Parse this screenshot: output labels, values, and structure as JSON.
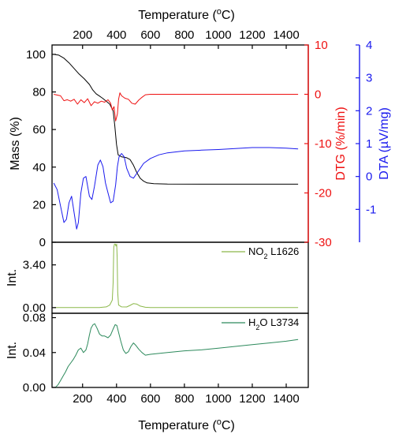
{
  "chart_data": {
    "type": "line",
    "x": {
      "label_main": "Temperature (",
      "label_sup": "o",
      "label_end": "C)",
      "range": [
        20,
        1530
      ],
      "ticks": [
        200,
        400,
        600,
        800,
        1000,
        1200,
        1400
      ]
    },
    "panels": [
      {
        "id": "tga",
        "axes": [
          {
            "id": "mass",
            "label": "Mass (%)",
            "side": "left",
            "color": "#000000",
            "range": [
              0,
              105
            ],
            "ticks": [
              0,
              20,
              40,
              60,
              80,
              100
            ],
            "tick_labels": [
              "0",
              "20",
              "40",
              "60",
              "80",
              "100"
            ]
          },
          {
            "id": "dtg",
            "label": "DTG (%/min)",
            "side": "right",
            "color": "#ee1111",
            "range": [
              -30,
              10
            ],
            "ticks": [
              -30,
              -20,
              -10,
              0,
              10
            ],
            "tick_labels": [
              "-30",
              "-20",
              "-10",
              "0",
              "10"
            ]
          },
          {
            "id": "dta",
            "label": "DTA (µV/mg)",
            "side": "right",
            "color": "#1a1aee",
            "range": [
              -2,
              4
            ],
            "ticks": [
              -1,
              0,
              1,
              2,
              3,
              4
            ],
            "tick_labels": [
              "-1",
              "0",
              "1",
              "2",
              "3",
              "4"
            ]
          }
        ],
        "series": [
          {
            "axis": "mass",
            "color": "#000000",
            "points": [
              [
                30,
                100
              ],
              [
                60,
                99.6
              ],
              [
                90,
                98
              ],
              [
                120,
                95.5
              ],
              [
                150,
                92.5
              ],
              [
                180,
                89.5
              ],
              [
                210,
                87
              ],
              [
                240,
                84
              ],
              [
                260,
                81
              ],
              [
                280,
                79
              ],
              [
                300,
                77.8
              ],
              [
                320,
                76.5
              ],
              [
                340,
                75
              ],
              [
                360,
                73.5
              ],
              [
                380,
                70
              ],
              [
                390,
                62
              ],
              [
                400,
                52
              ],
              [
                410,
                46.5
              ],
              [
                430,
                45.5
              ],
              [
                460,
                45
              ],
              [
                480,
                44
              ],
              [
                500,
                41
              ],
              [
                520,
                37
              ],
              [
                540,
                34
              ],
              [
                560,
                32.5
              ],
              [
                580,
                31.6
              ],
              [
                620,
                31.2
              ],
              [
                700,
                31
              ],
              [
                900,
                30.9
              ],
              [
                1100,
                30.9
              ],
              [
                1300,
                30.9
              ],
              [
                1470,
                30.9
              ]
            ]
          },
          {
            "axis": "dtg",
            "color": "#ee1111",
            "points": [
              [
                30,
                0
              ],
              [
                70,
                -0.3
              ],
              [
                90,
                -1.3
              ],
              [
                110,
                -1.1
              ],
              [
                130,
                -1.4
              ],
              [
                150,
                -1.0
              ],
              [
                170,
                -2.0
              ],
              [
                190,
                -1.1
              ],
              [
                210,
                -1.7
              ],
              [
                230,
                -0.9
              ],
              [
                250,
                -2.3
              ],
              [
                270,
                -1.5
              ],
              [
                290,
                -1.8
              ],
              [
                310,
                -1.4
              ],
              [
                330,
                -1.6
              ],
              [
                350,
                -1.1
              ],
              [
                365,
                -1.8
              ],
              [
                375,
                -3.2
              ],
              [
                385,
                -2.5
              ],
              [
                395,
                -5.4
              ],
              [
                405,
                -4.0
              ],
              [
                412,
                -1.0
              ],
              [
                420,
                0.3
              ],
              [
                430,
                -0.3
              ],
              [
                450,
                -0.8
              ],
              [
                470,
                -1.0
              ],
              [
                490,
                -1.8
              ],
              [
                510,
                -2.0
              ],
              [
                530,
                -1.2
              ],
              [
                550,
                -0.6
              ],
              [
                570,
                -0.1
              ],
              [
                600,
                0
              ],
              [
                800,
                0
              ],
              [
                1100,
                0
              ],
              [
                1470,
                0
              ]
            ]
          },
          {
            "axis": "dta",
            "color": "#1a1aee",
            "points": [
              [
                30,
                -0.2
              ],
              [
                50,
                -0.4
              ],
              [
                70,
                -0.9
              ],
              [
                90,
                -1.4
              ],
              [
                105,
                -1.3
              ],
              [
                120,
                -0.8
              ],
              [
                135,
                -0.6
              ],
              [
                150,
                -1.1
              ],
              [
                165,
                -1.6
              ],
              [
                175,
                -1.4
              ],
              [
                190,
                -0.5
              ],
              [
                205,
                -0.05
              ],
              [
                220,
                0
              ],
              [
                240,
                -0.6
              ],
              [
                255,
                -0.7
              ],
              [
                270,
                -0.3
              ],
              [
                290,
                0.35
              ],
              [
                305,
                0.5
              ],
              [
                320,
                0.3
              ],
              [
                335,
                -0.2
              ],
              [
                350,
                -0.5
              ],
              [
                365,
                -0.8
              ],
              [
                380,
                -0.75
              ],
              [
                395,
                -0.25
              ],
              [
                405,
                0.3
              ],
              [
                415,
                0.6
              ],
              [
                430,
                0.7
              ],
              [
                445,
                0.6
              ],
              [
                460,
                0.25
              ],
              [
                480,
                0
              ],
              [
                500,
                -0.05
              ],
              [
                520,
                0.1
              ],
              [
                540,
                0.25
              ],
              [
                560,
                0.4
              ],
              [
                600,
                0.55
              ],
              [
                650,
                0.66
              ],
              [
                700,
                0.72
              ],
              [
                800,
                0.78
              ],
              [
                900,
                0.8
              ],
              [
                1000,
                0.82
              ],
              [
                1100,
                0.85
              ],
              [
                1200,
                0.88
              ],
              [
                1300,
                0.88
              ],
              [
                1400,
                0.86
              ],
              [
                1470,
                0.84
              ]
            ]
          }
        ]
      },
      {
        "id": "no2",
        "axes": [
          {
            "id": "int1",
            "label": "Int.",
            "side": "left",
            "color": "#000000",
            "range": [
              -0.45,
              5.2
            ],
            "ticks": [
              0,
              3.4
            ],
            "tick_labels": [
              "0.00",
              "3.40"
            ]
          }
        ],
        "legend": {
          "main": "NO",
          "sub": "2",
          "rest": " L1626",
          "color": "#8cb84a",
          "position": "top-right"
        },
        "series": [
          {
            "axis": "int1",
            "color": "#8cb84a",
            "points": [
              [
                30,
                0
              ],
              [
                200,
                0
              ],
              [
                300,
                0.01
              ],
              [
                340,
                0.06
              ],
              [
                360,
                0.2
              ],
              [
                375,
                0.6
              ],
              [
                380,
                2.0
              ],
              [
                384,
                4.8
              ],
              [
                388,
                5.05
              ],
              [
                393,
                5.05
              ],
              [
                397,
                4.9
              ],
              [
                401,
                5.05
              ],
              [
                404,
                4.0
              ],
              [
                407,
                1.2
              ],
              [
                412,
                0.2
              ],
              [
                430,
                0.06
              ],
              [
                460,
                0.05
              ],
              [
                480,
                0.18
              ],
              [
                500,
                0.32
              ],
              [
                520,
                0.28
              ],
              [
                540,
                0.12
              ],
              [
                570,
                0.03
              ],
              [
                600,
                0.01
              ],
              [
                800,
                0
              ],
              [
                1100,
                0
              ],
              [
                1470,
                0
              ]
            ]
          }
        ]
      },
      {
        "id": "h2o",
        "axes": [
          {
            "id": "int2",
            "label": "Int.",
            "side": "left",
            "color": "#000000",
            "range": [
              0,
              0.085
            ],
            "ticks": [
              0,
              0.04,
              0.08
            ],
            "tick_labels": [
              "0.00",
              "0.04",
              "0.08"
            ]
          }
        ],
        "legend": {
          "main": "H",
          "sub": "2",
          "rest": "O L3734",
          "color": "#2d8a5c",
          "position": "top-right"
        },
        "series": [
          {
            "axis": "int2",
            "color": "#2d8a5c",
            "points": [
              [
                40,
                0
              ],
              [
                55,
                0.003
              ],
              [
                70,
                0.008
              ],
              [
                85,
                0.013
              ],
              [
                100,
                0.018
              ],
              [
                115,
                0.024
              ],
              [
                130,
                0.028
              ],
              [
                145,
                0.032
              ],
              [
                160,
                0.037
              ],
              [
                175,
                0.043
              ],
              [
                190,
                0.045
              ],
              [
                205,
                0.04
              ],
              [
                220,
                0.043
              ],
              [
                230,
                0.05
              ],
              [
                240,
                0.06
              ],
              [
                250,
                0.068
              ],
              [
                262,
                0.072
              ],
              [
                272,
                0.073
              ],
              [
                285,
                0.068
              ],
              [
                300,
                0.061
              ],
              [
                315,
                0.059
              ],
              [
                330,
                0.059
              ],
              [
                350,
                0.057
              ],
              [
                365,
                0.06
              ],
              [
                380,
                0.067
              ],
              [
                392,
                0.072
              ],
              [
                402,
                0.071
              ],
              [
                412,
                0.063
              ],
              [
                425,
                0.053
              ],
              [
                440,
                0.043
              ],
              [
                455,
                0.039
              ],
              [
                470,
                0.041
              ],
              [
                485,
                0.047
              ],
              [
                500,
                0.051
              ],
              [
                515,
                0.048
              ],
              [
                530,
                0.044
              ],
              [
                550,
                0.04
              ],
              [
                570,
                0.037
              ],
              [
                600,
                0.038
              ],
              [
                700,
                0.04
              ],
              [
                800,
                0.042
              ],
              [
                900,
                0.043
              ],
              [
                1000,
                0.045
              ],
              [
                1100,
                0.047
              ],
              [
                1200,
                0.049
              ],
              [
                1300,
                0.051
              ],
              [
                1400,
                0.053
              ],
              [
                1470,
                0.055
              ]
            ]
          }
        ]
      }
    ]
  }
}
